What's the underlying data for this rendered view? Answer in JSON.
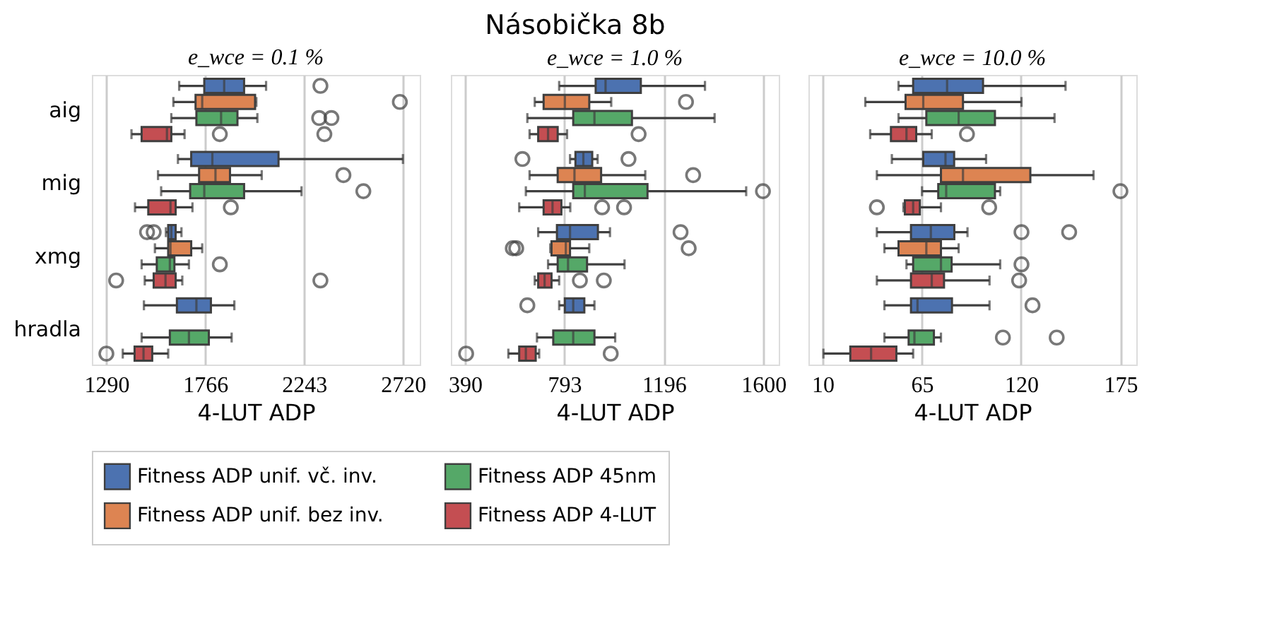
{
  "chart_data": [
    {
      "type": "box",
      "subtitle": "e_wce = 0.1 %",
      "xlabel": "4-LUT ADP",
      "orientation": "horizontal",
      "categories": [
        "aig",
        "mig",
        "xmg",
        "hradla"
      ],
      "xlim": [
        1220,
        2801
      ],
      "xticks": [
        {
          "value": 1290,
          "label": "1290"
        },
        {
          "value": 1766,
          "label": "1766"
        },
        {
          "value": 2243,
          "label": "2243"
        },
        {
          "value": 2720,
          "label": "2720"
        }
      ],
      "grid": "x",
      "legend": "bottom",
      "series": [
        {
          "name": "Fitness ADP unif. vč. inv.",
          "color": "#4c72b0",
          "boxes": [
            {
              "low": 1641,
              "q1": 1762,
              "median": 1858,
              "q3": 1954,
              "high": 2060,
              "outliers": [
                2322
              ]
            },
            {
              "low": 1635,
              "q1": 1699,
              "median": 1801,
              "q3": 2120,
              "high": 2720
            },
            {
              "low": 1577,
              "q1": 1588,
              "median": 1603,
              "q3": 1624,
              "high": 1652,
              "outliers": [
                1486,
                1518
              ]
            },
            {
              "low": 1471,
              "q1": 1630,
              "median": 1724,
              "q3": 1794,
              "high": 1907
            }
          ]
        },
        {
          "name": "Fitness ADP unif. bez inv.",
          "color": "#dd8452",
          "boxes": [
            {
              "low": 1613,
              "q1": 1720,
              "median": 1752,
              "q3": 2007,
              "high": 2013,
              "outliers": [
                2705
              ]
            },
            {
              "low": 1539,
              "q1": 1737,
              "median": 1816,
              "q3": 1886,
              "high": 2039,
              "outliers": [
                2433
              ]
            },
            {
              "low": 1524,
              "q1": 1588,
              "median": 1599,
              "q3": 1699,
              "high": 1752
            },
            null
          ]
        },
        {
          "name": "Fitness ADP 45nm",
          "color": "#55a868",
          "boxes": [
            {
              "low": 1603,
              "q1": 1724,
              "median": 1843,
              "q3": 1922,
              "high": 2018,
              "outliers": [
                2316,
                2375
              ]
            },
            {
              "low": 1554,
              "q1": 1694,
              "median": 1762,
              "q3": 1954,
              "high": 2231,
              "outliers": [
                2529
              ]
            },
            {
              "low": 1460,
              "q1": 1533,
              "median": 1596,
              "q3": 1618,
              "high": 1688,
              "outliers": [
                1837
              ]
            },
            {
              "low": 1460,
              "q1": 1596,
              "median": 1688,
              "q3": 1784,
              "high": 1894
            }
          ]
        },
        {
          "name": "Fitness ADP 4-LUT",
          "color": "#c44e52",
          "boxes": [
            {
              "low": 1411,
              "q1": 1460,
              "median": 1582,
              "q3": 1603,
              "high": 1667,
              "outliers": [
                1837,
                2341
              ]
            },
            {
              "low": 1428,
              "q1": 1492,
              "median": 1599,
              "q3": 1624,
              "high": 1705,
              "outliers": [
                1890
              ]
            },
            {
              "low": 1475,
              "q1": 1518,
              "median": 1575,
              "q3": 1624,
              "high": 1656,
              "outliers": [
                1337,
                2322
              ]
            },
            {
              "low": 1369,
              "q1": 1426,
              "median": 1469,
              "q3": 1511,
              "high": 1588,
              "outliers": [
                1290
              ]
            }
          ]
        }
      ]
    },
    {
      "type": "box",
      "title": "Násobička 8b",
      "subtitle": "e_wce = 1.0 %",
      "xlabel": "4-LUT ADP",
      "orientation": "horizontal",
      "categories": [
        "aig",
        "mig",
        "xmg",
        "hradla"
      ],
      "xlim": [
        333,
        1662
      ],
      "xticks": [
        390,
        793,
        {
          "value": 1196,
          "label": "1196"
        },
        {
          "value": 1600,
          "label": "1600"
        }
      ],
      "grid": "x",
      "tick_labels": "x",
      "series": [
        {
          "name": "Fitness ADP unif. vč. inv.",
          "color": "#4c72b0",
          "boxes": [
            {
              "low": 772,
              "q1": 920,
              "median": 960,
              "q3": 1103,
              "high": 1363
            },
            {
              "low": 816,
              "q1": 838,
              "median": 870,
              "q3": 906,
              "high": 928,
              "outliers": [
                623,
                1053
              ]
            },
            {
              "low": 687,
              "q1": 763,
              "median": 816,
              "q3": 929,
              "high": 978,
              "outliers": [
                1264
              ]
            },
            {
              "low": 772,
              "q1": 795,
              "median": 829,
              "q3": 874,
              "high": 915,
              "outliers": [
                643
              ]
            }
          ]
        },
        {
          "name": "Fitness ADP unif. bez inv.",
          "color": "#dd8452",
          "boxes": [
            {
              "low": 673,
              "q1": 709,
              "median": 795,
              "q3": 894,
              "high": 983,
              "outliers": [
                1286
              ]
            },
            {
              "low": 652,
              "q1": 766,
              "median": 834,
              "q3": 942,
              "high": 1121,
              "outliers": [
                1315
              ]
            },
            {
              "low": 736,
              "q1": 741,
              "median": 799,
              "q3": 816,
              "high": 894,
              "outliers": [
                584,
                598,
                1297
              ]
            },
            null
          ]
        },
        {
          "name": "Fitness ADP 45nm",
          "color": "#55a868",
          "boxes": [
            {
              "low": 643,
              "q1": 829,
              "median": 915,
              "q3": 1067,
              "high": 1402
            },
            {
              "low": 637,
              "q1": 829,
              "median": 876,
              "q3": 1130,
              "high": 1530,
              "outliers": [
                1598
              ]
            },
            {
              "low": 727,
              "q1": 766,
              "median": 808,
              "q3": 885,
              "high": 1037
            },
            {
              "low": 682,
              "q1": 748,
              "median": 829,
              "q3": 915,
              "high": 999
            }
          ]
        },
        {
          "name": "Fitness ADP 4-LUT",
          "color": "#c44e52",
          "boxes": [
            {
              "low": 652,
              "q1": 687,
              "median": 727,
              "q3": 766,
              "high": 804,
              "outliers": [
                1094
              ]
            },
            {
              "low": 610,
              "q1": 709,
              "median": 745,
              "q3": 781,
              "high": 817,
              "outliers": [
                946,
                1035
              ]
            },
            {
              "low": 673,
              "q1": 687,
              "median": 713,
              "q3": 741,
              "high": 772,
              "outliers": [
                856,
                953
              ]
            },
            {
              "low": 566,
              "q1": 610,
              "median": 637,
              "q3": 677,
              "high": 691,
              "outliers": [
                395,
                981
              ]
            }
          ]
        }
      ]
    },
    {
      "type": "box",
      "subtitle": "e_wce = 10.0 %",
      "xlabel": "4-LUT ADP",
      "orientation": "horizontal",
      "categories": [
        "aig",
        "mig",
        "xmg",
        "hradla"
      ],
      "xlim": [
        2.2,
        183.8
      ],
      "xticks": [
        10,
        65,
        120,
        175
      ],
      "grid": "x",
      "tick_labels": "x",
      "series": [
        {
          "name": "Fitness ADP unif. vč. inv.",
          "color": "#4c72b0",
          "boxes": [
            {
              "low": 52.1,
              "q1": 60.2,
              "median": 79.0,
              "q3": 98.9,
              "high": 144.6
            },
            {
              "low": 48.4,
              "q1": 65.8,
              "median": 78.1,
              "q3": 82.9,
              "high": 100.6
            },
            {
              "low": 40.1,
              "q1": 59.0,
              "median": 70.0,
              "q3": 83.0,
              "high": 90.3,
              "outliers": [
                120.2,
                146.6
              ]
            },
            {
              "low": 44.3,
              "q1": 59.0,
              "median": 62.6,
              "q3": 81.7,
              "high": 102.5,
              "outliers": [
                126.3
              ]
            }
          ]
        },
        {
          "name": "Fitness ADP unif. bez inv.",
          "color": "#dd8452",
          "boxes": [
            {
              "low": 33.7,
              "q1": 56.0,
              "median": 65.8,
              "q3": 87.8,
              "high": 120.2
            },
            {
              "low": 40.1,
              "q1": 75.6,
              "median": 87.8,
              "q3": 125.1,
              "high": 160.1
            },
            {
              "low": 44.3,
              "q1": 52.1,
              "median": 67.5,
              "q3": 75.6,
              "high": 85.4
            },
            null
          ]
        },
        {
          "name": "Fitness ADP 45nm",
          "color": "#55a868",
          "boxes": [
            {
              "low": 52.1,
              "q1": 67.5,
              "median": 85.4,
              "q3": 105.5,
              "high": 138.5
            },
            {
              "low": 65.1,
              "q1": 74.1,
              "median": 78.5,
              "q3": 105.5,
              "high": 108.4,
              "outliers": [
                175.0
              ]
            },
            {
              "low": 56.5,
              "q1": 60.2,
              "median": 75.6,
              "q3": 81.5,
              "high": 108.4,
              "outliers": [
                120.2
              ]
            },
            {
              "low": 44.3,
              "q1": 57.7,
              "median": 60.9,
              "q3": 71.7,
              "high": 75.6,
              "outliers": [
                109.9,
                139.7
              ]
            }
          ]
        },
        {
          "name": "Fitness ADP 4-LUT",
          "color": "#c44e52",
          "boxes": [
            {
              "low": 36.4,
              "q1": 47.9,
              "median": 56.5,
              "q3": 61.9,
              "high": 70.5,
              "outliers": [
                90.0
              ]
            },
            {
              "low": 54.8,
              "q1": 55.6,
              "median": 60.2,
              "q3": 63.9,
              "high": 75.6,
              "outliers": [
                40.1,
                102.3
              ]
            },
            {
              "low": 40.1,
              "q1": 59.0,
              "median": 70.5,
              "q3": 77.3,
              "high": 102.5,
              "outliers": [
                118.9
              ]
            },
            {
              "low": 10.5,
              "q1": 25.4,
              "median": 36.9,
              "q3": 50.9,
              "high": 60.2
            }
          ]
        }
      ]
    }
  ]
}
